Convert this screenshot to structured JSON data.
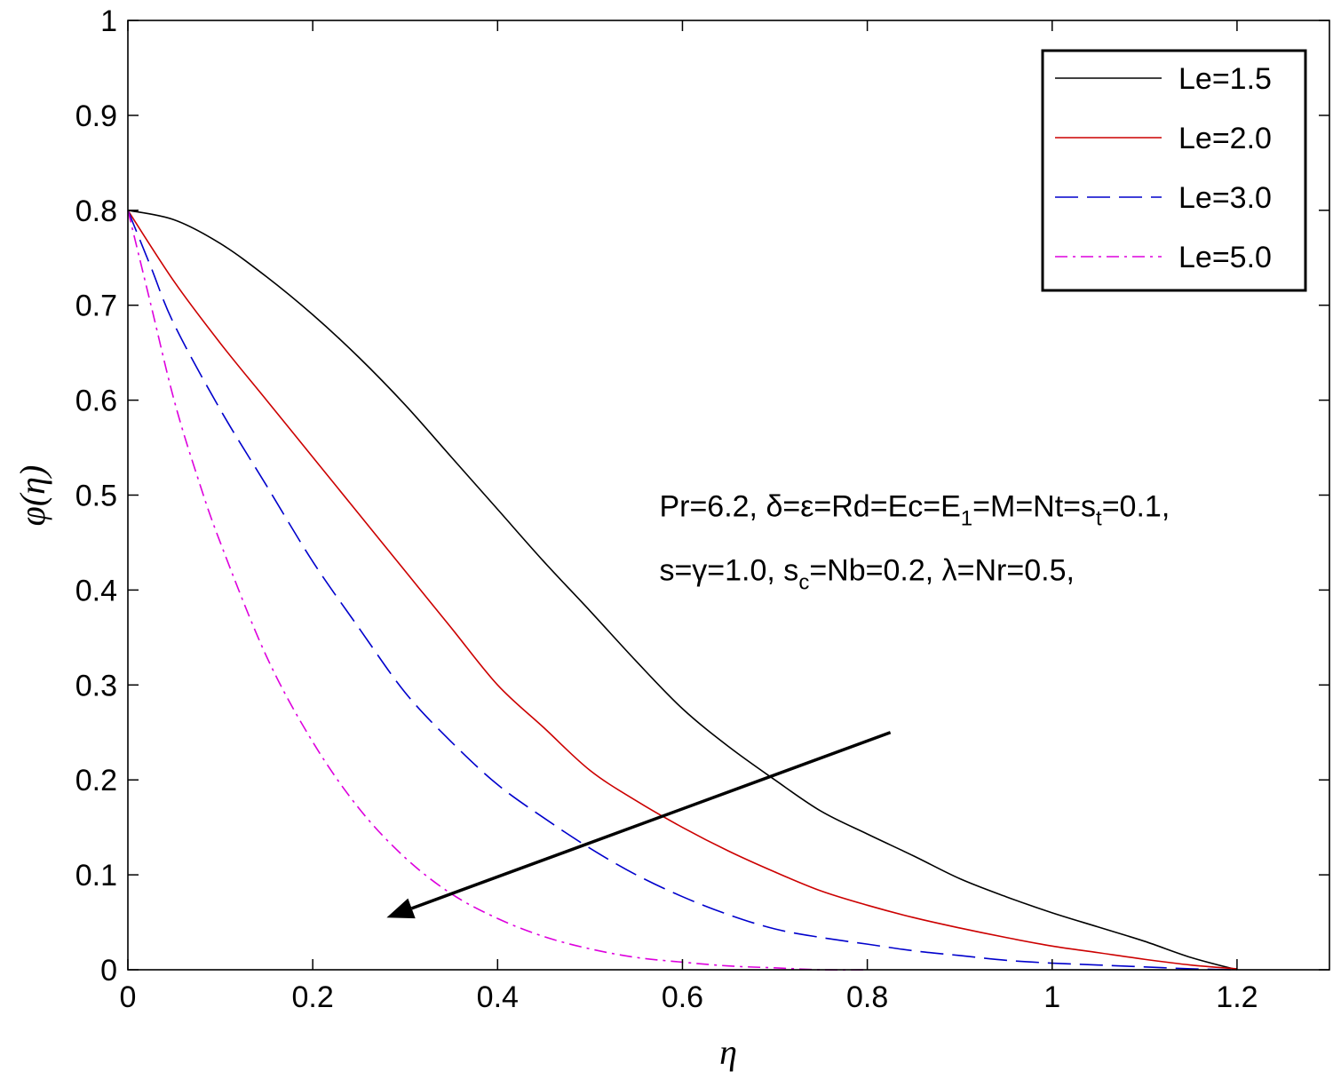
{
  "chart_data": {
    "type": "line",
    "title": "",
    "xlabel": "η",
    "ylabel": "φ(η)",
    "xlim": [
      0,
      1.3
    ],
    "ylim": [
      0,
      1
    ],
    "x_ticks": [
      0,
      0.2,
      0.4,
      0.6,
      0.8,
      1,
      1.2
    ],
    "x_tick_labels": [
      "0",
      "0.2",
      "0.4",
      "0.6",
      "0.8",
      "1",
      "1.2"
    ],
    "y_ticks": [
      0,
      0.1,
      0.2,
      0.3,
      0.4,
      0.5,
      0.6,
      0.7,
      0.8,
      0.9,
      1
    ],
    "y_tick_labels": [
      "0",
      "0.1",
      "0.2",
      "0.3",
      "0.4",
      "0.5",
      "0.6",
      "0.7",
      "0.8",
      "0.9",
      "1"
    ],
    "grid": false,
    "legend_position": "top-right",
    "series": [
      {
        "name": "Le=1.5",
        "color": "#000000",
        "dash": "solid",
        "x": [
          0,
          0.05,
          0.1,
          0.15,
          0.2,
          0.25,
          0.3,
          0.35,
          0.4,
          0.45,
          0.5,
          0.55,
          0.6,
          0.65,
          0.7,
          0.75,
          0.8,
          0.85,
          0.9,
          0.95,
          1.0,
          1.05,
          1.1,
          1.15,
          1.2
        ],
        "y": [
          0.8,
          0.79,
          0.765,
          0.73,
          0.69,
          0.645,
          0.595,
          0.54,
          0.485,
          0.43,
          0.378,
          0.325,
          0.275,
          0.235,
          0.2,
          0.167,
          0.143,
          0.12,
          0.096,
          0.077,
          0.06,
          0.045,
          0.03,
          0.013,
          0.0
        ]
      },
      {
        "name": "Le=2.0",
        "color": "#cc0000",
        "dash": "solid",
        "x": [
          0,
          0.05,
          0.1,
          0.15,
          0.2,
          0.25,
          0.3,
          0.35,
          0.4,
          0.45,
          0.5,
          0.55,
          0.6,
          0.65,
          0.7,
          0.75,
          0.8,
          0.85,
          0.9,
          0.95,
          1.0,
          1.05,
          1.1,
          1.15,
          1.2
        ],
        "y": [
          0.8,
          0.725,
          0.66,
          0.6,
          0.54,
          0.48,
          0.42,
          0.36,
          0.3,
          0.255,
          0.21,
          0.178,
          0.15,
          0.125,
          0.103,
          0.083,
          0.068,
          0.055,
          0.044,
          0.034,
          0.025,
          0.018,
          0.011,
          0.005,
          0.001
        ]
      },
      {
        "name": "Le=3.0",
        "color": "#0000cc",
        "dash": "dashed",
        "x": [
          0,
          0.025,
          0.05,
          0.1,
          0.15,
          0.2,
          0.25,
          0.3,
          0.35,
          0.4,
          0.45,
          0.5,
          0.55,
          0.6,
          0.65,
          0.7,
          0.75,
          0.8,
          0.85,
          0.9,
          0.95,
          1.0,
          1.05,
          1.1,
          1.15,
          1.2
        ],
        "y": [
          0.8,
          0.74,
          0.68,
          0.59,
          0.51,
          0.43,
          0.36,
          0.292,
          0.24,
          0.195,
          0.16,
          0.128,
          0.1,
          0.077,
          0.058,
          0.043,
          0.034,
          0.027,
          0.02,
          0.015,
          0.01,
          0.007,
          0.005,
          0.003,
          0.001,
          0.0
        ]
      },
      {
        "name": "Le=5.0",
        "color": "#dd00dd",
        "dash": "dashdot",
        "x": [
          0,
          0.025,
          0.05,
          0.075,
          0.1,
          0.15,
          0.2,
          0.25,
          0.3,
          0.35,
          0.4,
          0.45,
          0.5,
          0.55,
          0.6,
          0.65,
          0.7,
          0.75,
          0.8
        ],
        "y": [
          0.8,
          0.7,
          0.6,
          0.52,
          0.45,
          0.33,
          0.24,
          0.17,
          0.118,
          0.08,
          0.054,
          0.035,
          0.022,
          0.013,
          0.008,
          0.004,
          0.002,
          0.0,
          0.0
        ]
      }
    ],
    "annotation_lines": [
      {
        "segments": [
          {
            "text": "Pr=6.2, δ=ε=Rd=Ec=E"
          },
          {
            "text": "1",
            "sub": true
          },
          {
            "text": "=M=Nt=s"
          },
          {
            "text": "t",
            "sub": true
          },
          {
            "text": "=0.1,"
          }
        ]
      },
      {
        "segments": [
          {
            "text": "s=γ=1.0, s"
          },
          {
            "text": "c",
            "sub": true
          },
          {
            "text": "=Nb=0.2, λ=Nr=0.5,"
          }
        ]
      }
    ],
    "annotation_position": {
      "x": 0.575,
      "y": 0.5
    },
    "arrow": {
      "from": [
        0.825,
        0.25
      ],
      "to": [
        0.28,
        0.055
      ],
      "direction": "increasing Le"
    }
  }
}
